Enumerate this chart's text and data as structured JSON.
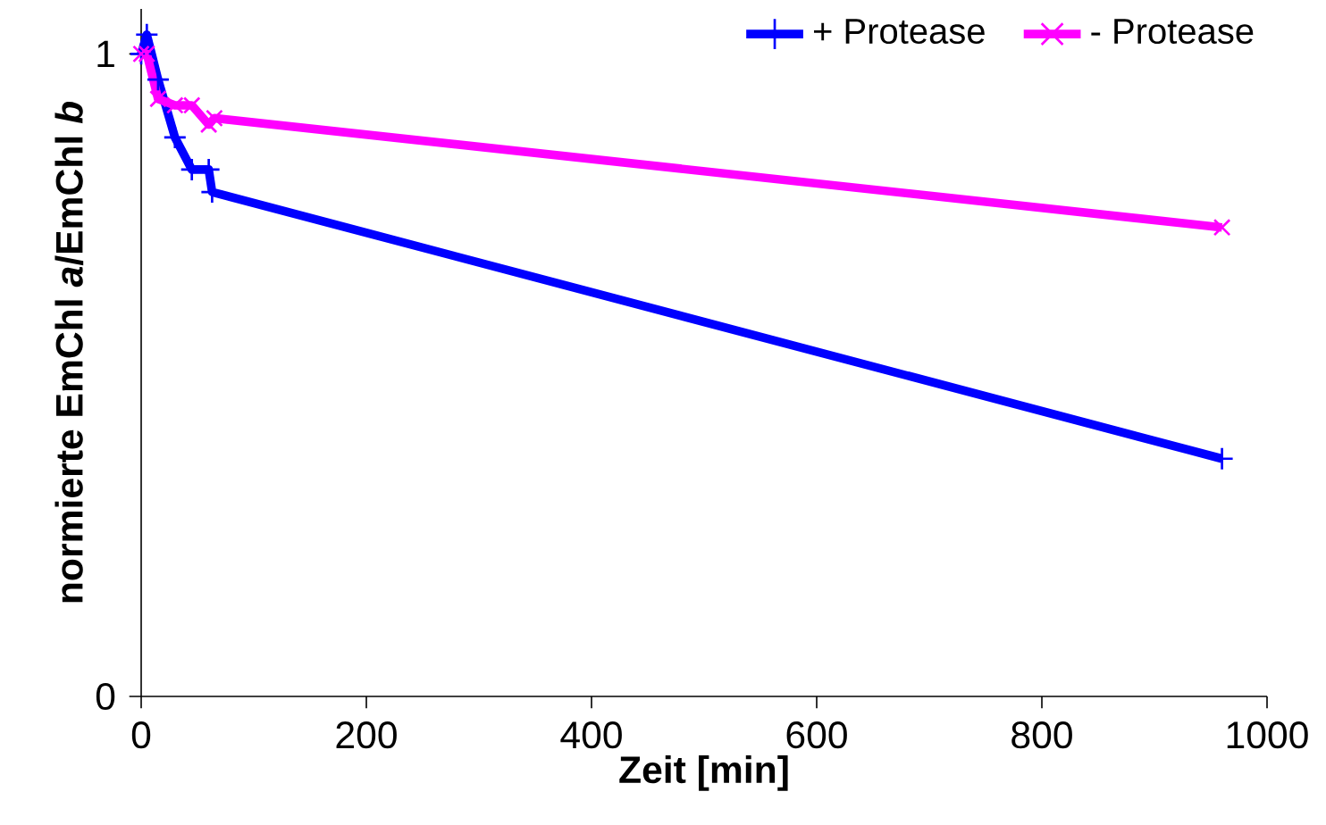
{
  "chart_data": {
    "type": "line",
    "xlabel": "Zeit [min]",
    "ylabel": "normierte EmChl *a*/EmChl *b*",
    "xlim": [
      0,
      1000
    ],
    "xticks": [
      0,
      200,
      400,
      600,
      800,
      1000
    ],
    "ylim": [
      0,
      1.07
    ],
    "yticks": [
      0,
      1
    ],
    "grid": false,
    "legend": "top right",
    "line_style": "solid",
    "series": [
      {
        "name": "+ Protease",
        "color": "#0000ff",
        "marker": "plus",
        "x": [
          0,
          5,
          15,
          30,
          45,
          60,
          63,
          960
        ],
        "values": [
          1.0,
          1.03,
          0.96,
          0.87,
          0.82,
          0.82,
          0.785,
          0.37
        ]
      },
      {
        "name": "- Protease",
        "color": "#ff00ff",
        "marker": "cross",
        "x": [
          0,
          5,
          15,
          30,
          45,
          60,
          65,
          960
        ],
        "values": [
          1.0,
          1.0,
          0.93,
          0.92,
          0.92,
          0.89,
          0.9,
          0.73
        ]
      }
    ]
  }
}
